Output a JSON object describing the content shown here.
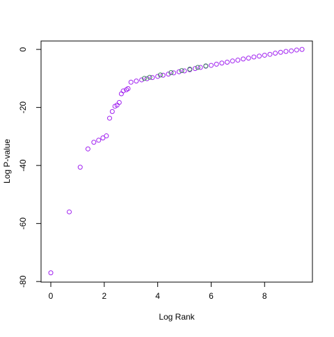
{
  "chart_data": {
    "type": "scatter",
    "x_label": "Log Rank",
    "y_label": "Log P-value",
    "xlim": [
      -0.365,
      9.79
    ],
    "ylim": [
      -80.2,
      2.9
    ],
    "xticks": [
      0,
      2,
      4,
      6,
      8
    ],
    "yticks": [
      0,
      -20,
      -40,
      -60,
      -80
    ],
    "series": [
      {
        "color": "#a020f0",
        "x": [
          0,
          0.69,
          1.1,
          1.39,
          1.61,
          1.79,
          1.95,
          2.08,
          2.2,
          2.3,
          2.4,
          2.48,
          2.56,
          2.64,
          2.71,
          2.83,
          2.89,
          3.0,
          3.2,
          3.4,
          3.6,
          3.8,
          4.0,
          4.2,
          4.4,
          4.6,
          4.8,
          5.0,
          5.2,
          5.4,
          5.6,
          5.8,
          6.0,
          6.2,
          6.4,
          6.6,
          6.8,
          7.0,
          7.2,
          7.4,
          7.6,
          7.8,
          8.0,
          8.2,
          8.4,
          8.6,
          8.8,
          9.0,
          9.2,
          9.4
        ],
        "y": [
          -77,
          -56,
          -40.6,
          -34.3,
          -32,
          -31.3,
          -30.5,
          -29.8,
          -23.7,
          -21.4,
          -19.6,
          -19.2,
          -18.3,
          -15.3,
          -14.3,
          -13.9,
          -13.5,
          -11.3,
          -10.9,
          -10.5,
          -10.1,
          -9.7,
          -9.3,
          -8.9,
          -8.5,
          -8.1,
          -7.7,
          -7.4,
          -7.0,
          -6.6,
          -6.2,
          -5.8,
          -5.5,
          -5.1,
          -4.7,
          -4.4,
          -4.0,
          -3.7,
          -3.3,
          -3.0,
          -2.6,
          -2.3,
          -2.0,
          -1.7,
          -1.3,
          -1.0,
          -0.7,
          -0.5,
          -0.2,
          0
        ]
      },
      {
        "color": "#3c8a5a",
        "x": [
          3.5,
          3.7,
          4.1,
          4.5,
          4.9,
          5.2,
          5.5,
          5.8
        ],
        "y": [
          -10.0,
          -9.6,
          -8.8,
          -8.0,
          -7.3,
          -6.8,
          -6.2,
          -5.7
        ]
      }
    ]
  }
}
